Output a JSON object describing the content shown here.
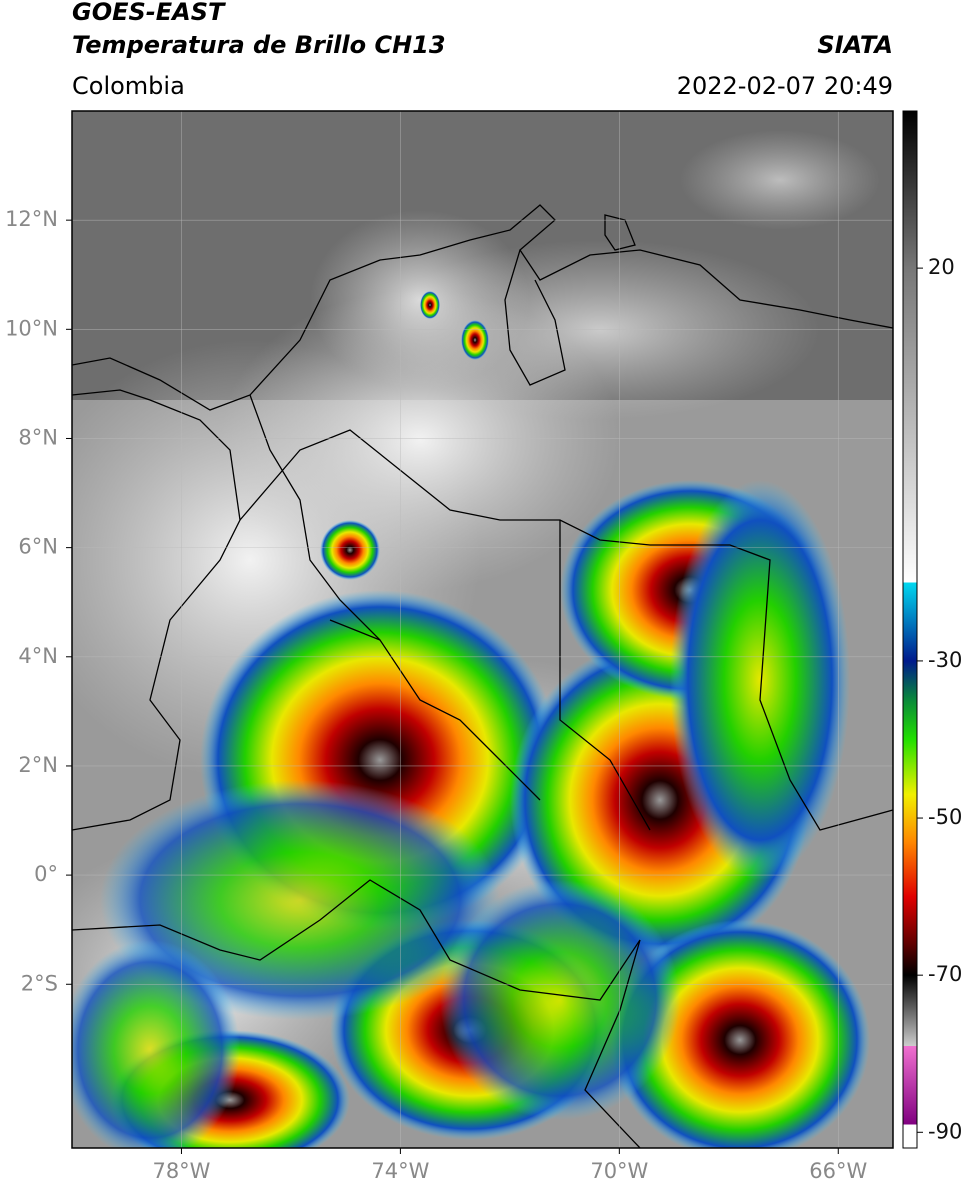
{
  "header": {
    "title": "GOES-EAST",
    "subtitle": "Temperatura de Brillo CH13",
    "source": "SIATA",
    "region": "Colombia",
    "datetime": "2022-02-07 20:49"
  },
  "map": {
    "xlim": [
      -80,
      -65
    ],
    "ylim": [
      -5,
      14
    ],
    "xticks": [
      {
        "value": -78,
        "label": "78°W"
      },
      {
        "value": -74,
        "label": "74°W"
      },
      {
        "value": -70,
        "label": "70°W"
      },
      {
        "value": -66,
        "label": "66°W"
      }
    ],
    "yticks": [
      {
        "value": 12,
        "label": "12°N"
      },
      {
        "value": 10,
        "label": "10°N"
      },
      {
        "value": 8,
        "label": "8°N"
      },
      {
        "value": 6,
        "label": "6°N"
      },
      {
        "value": 4,
        "label": "4°N"
      },
      {
        "value": 2,
        "label": "2°N"
      },
      {
        "value": 0,
        "label": "0°"
      },
      {
        "value": -2,
        "label": "2°S"
      }
    ],
    "grid": true
  },
  "colorbar": {
    "range": [
      -92,
      40
    ],
    "ticks": [
      20,
      -30,
      -50,
      -70,
      -90
    ],
    "stops": [
      {
        "value": 40,
        "color": "#000000"
      },
      {
        "value": 20,
        "color": "#777777"
      },
      {
        "value": -20,
        "color": "#ffffff"
      },
      {
        "value": -20.01,
        "color": "#00d8f0"
      },
      {
        "value": -30,
        "color": "#001a8c"
      },
      {
        "value": -35,
        "color": "#0a8a3a"
      },
      {
        "value": -40,
        "color": "#22e000"
      },
      {
        "value": -47,
        "color": "#f0f000"
      },
      {
        "value": -53,
        "color": "#ff8800"
      },
      {
        "value": -60,
        "color": "#e00000"
      },
      {
        "value": -66,
        "color": "#600000"
      },
      {
        "value": -70,
        "color": "#000000"
      },
      {
        "value": -79,
        "color": "#cccccc"
      },
      {
        "value": -79.01,
        "color": "#f070d0"
      },
      {
        "value": -89,
        "color": "#800080"
      },
      {
        "value": -89.01,
        "color": "#ffffff"
      },
      {
        "value": -92,
        "color": "#ffffff"
      }
    ]
  }
}
